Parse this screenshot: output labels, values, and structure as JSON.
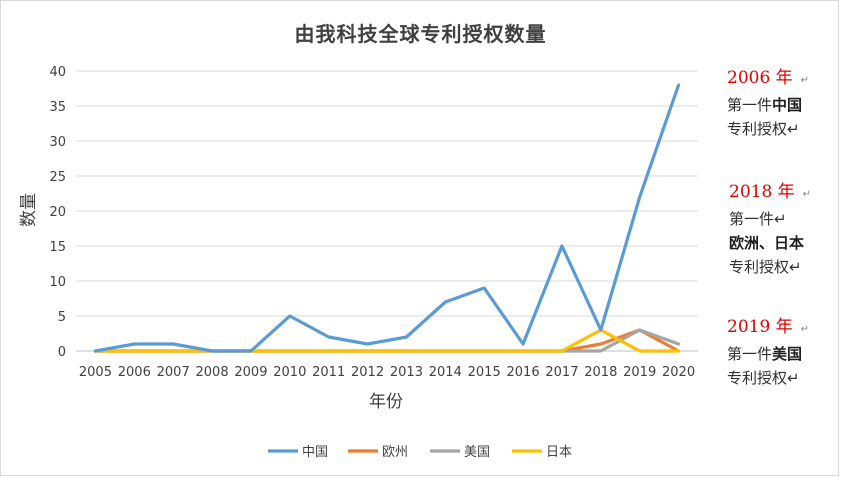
{
  "chart_data": {
    "type": "line",
    "title": "由我科技全球专利授权数量",
    "xlabel": "年份",
    "ylabel": "数量",
    "ylim": [
      0,
      40
    ],
    "yticks": [
      "0",
      "5",
      "10",
      "15",
      "20",
      "25",
      "30",
      "35",
      "40"
    ],
    "categories": [
      "2005",
      "2006",
      "2007",
      "2008",
      "2009",
      "2010",
      "2011",
      "2012",
      "2013",
      "2014",
      "2015",
      "2016",
      "2017",
      "2018",
      "2019",
      "2020"
    ],
    "grid": true,
    "legend_position": "bottom",
    "series": [
      {
        "name": "中国",
        "color": "#5b9bd5",
        "values": [
          0,
          1,
          1,
          0,
          0,
          5,
          2,
          1,
          2,
          7,
          9,
          1,
          15,
          3,
          22,
          38
        ]
      },
      {
        "name": "欧州",
        "color": "#ed7d31",
        "values": [
          0,
          0,
          0,
          0,
          0,
          0,
          0,
          0,
          0,
          0,
          0,
          0,
          0,
          1,
          3,
          0
        ]
      },
      {
        "name": "美国",
        "color": "#a5a5a5",
        "values": [
          0,
          0,
          0,
          0,
          0,
          0,
          0,
          0,
          0,
          0,
          0,
          0,
          0,
          0,
          3,
          1
        ]
      },
      {
        "name": "日本",
        "color": "#ffc000",
        "values": [
          0,
          0,
          0,
          0,
          0,
          0,
          0,
          0,
          0,
          0,
          0,
          0,
          0,
          3,
          0,
          0
        ]
      }
    ]
  },
  "annotations": [
    {
      "year": "2006 年",
      "mark": "↵",
      "lines": [
        [
          "第一件",
          "中国"
        ],
        [
          "专利授权↵",
          ""
        ]
      ]
    },
    {
      "year": "2018 年",
      "mark": "↵",
      "lines": [
        [
          "第一件↵",
          ""
        ],
        [
          "",
          "欧洲、日本"
        ],
        [
          "专利授权↵",
          ""
        ]
      ]
    },
    {
      "year": "2019 年",
      "mark": "↵",
      "lines": [
        [
          "第一件",
          "美国"
        ],
        [
          "专利授权↵",
          ""
        ]
      ]
    }
  ]
}
